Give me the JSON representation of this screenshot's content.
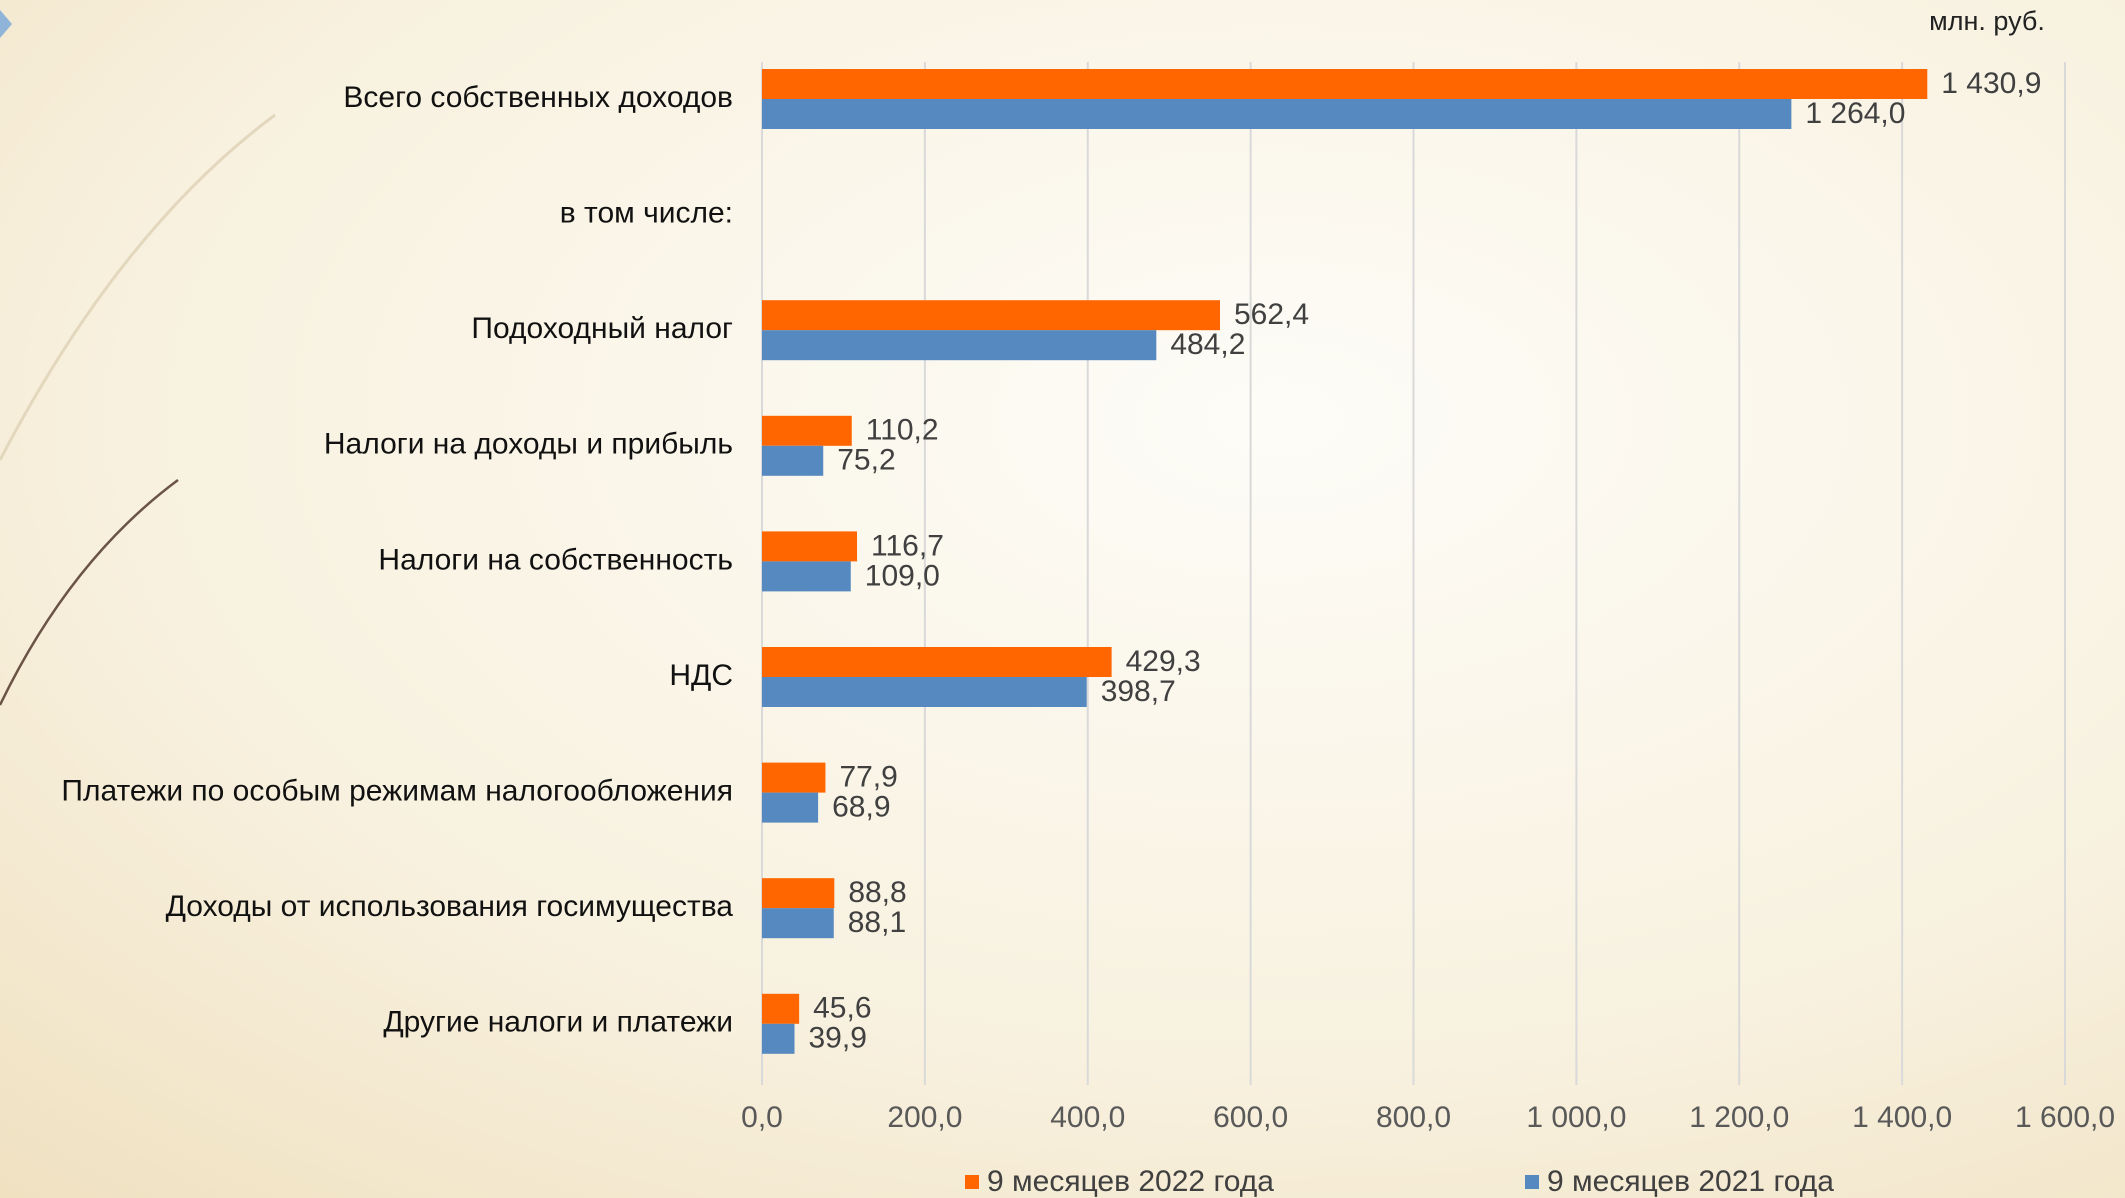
{
  "chart_data": {
    "type": "hbar",
    "unit_label": "млн. руб.",
    "categories": [
      "Всего собственных доходов",
      "в том числе:",
      "Подоходный налог",
      "Налоги на доходы и прибыль",
      "Налоги на собственность",
      "НДС",
      "Платежи по особым режимам налогообложения",
      "Доходы от использования госимущества",
      "Другие налоги и платежи"
    ],
    "series": [
      {
        "name": "9 месяцев 2022 года",
        "color": "#ff6600",
        "values": [
          1430.9,
          null,
          562.4,
          110.2,
          116.7,
          429.3,
          77.9,
          88.8,
          45.6
        ],
        "value_labels": [
          "1 430,9",
          null,
          "562,4",
          "110,2",
          "116,7",
          "429,3",
          "77,9",
          "88,8",
          "45,6"
        ]
      },
      {
        "name": "9 месяцев 2021 года",
        "color": "#5689bf",
        "values": [
          1264.0,
          null,
          484.2,
          75.2,
          109.0,
          398.7,
          68.9,
          88.1,
          39.9
        ],
        "value_labels": [
          "1 264,0",
          null,
          "484,2",
          "75,2",
          "109,0",
          "398,7",
          "68,9",
          "88,1",
          "39,9"
        ]
      }
    ],
    "xlim": [
      0,
      1600
    ],
    "xticks": [
      {
        "value": 0,
        "label": "0,0"
      },
      {
        "value": 200,
        "label": "200,0"
      },
      {
        "value": 400,
        "label": "400,0"
      },
      {
        "value": 600,
        "label": "600,0"
      },
      {
        "value": 800,
        "label": "800,0"
      },
      {
        "value": 1000,
        "label": "1 000,0"
      },
      {
        "value": 1200,
        "label": "1 200,0"
      },
      {
        "value": 1400,
        "label": "1 400,0"
      },
      {
        "value": 1600,
        "label": "1 600,0"
      }
    ],
    "grid": true,
    "legend": "bottom"
  }
}
